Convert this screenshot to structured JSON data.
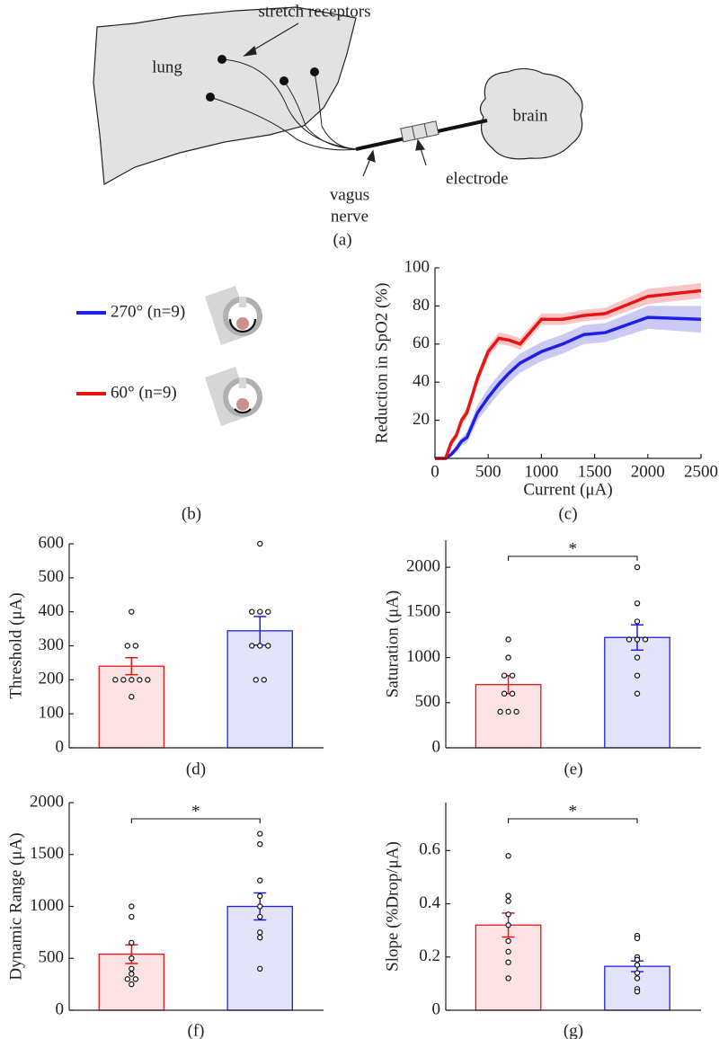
{
  "figure": {
    "panel_a": {
      "lung": "lung",
      "brain": "brain",
      "stretch_receptors": "stretch receptors",
      "vagus": "vagus",
      "nerve": "nerve",
      "electrode": "electrode",
      "panel_label": "(a)"
    },
    "panel_b": {
      "panel_label": "(b)"
    }
  },
  "chart_data": [
    {
      "type": "line",
      "panel_label": "(c)",
      "xlabel": "Current (μA)",
      "ylabel": "Reduction in SpO2 (%)",
      "x": [
        0,
        100,
        150,
        200,
        250,
        300,
        400,
        500,
        600,
        700,
        800,
        1000,
        1200,
        1400,
        1600,
        2000,
        2500
      ],
      "xlim": [
        0,
        2500
      ],
      "xticks": [
        0,
        500,
        1000,
        1500,
        2000,
        2500
      ],
      "ylim": [
        0,
        100
      ],
      "yticks": [
        20,
        40,
        60,
        80,
        100
      ],
      "series": [
        {
          "name": "270° (n=9)",
          "color": "#1f1fe6",
          "band_color": "#b8b8f2",
          "values": [
            0,
            0,
            2,
            5,
            9,
            11,
            24,
            32,
            39,
            45,
            50,
            56,
            60,
            65,
            66,
            74,
            73
          ],
          "errors": [
            0,
            0,
            1,
            2,
            2,
            3,
            4,
            5,
            5,
            5,
            5,
            5,
            5,
            5,
            5,
            6,
            7
          ]
        },
        {
          "name": "60°   (n=9)",
          "color": "#e81414",
          "band_color": "#f5b3b3",
          "values": [
            0,
            0,
            8,
            12,
            20,
            24,
            42,
            56,
            63,
            62,
            60,
            73,
            73,
            75,
            76,
            85,
            88
          ],
          "errors": [
            0,
            0,
            2,
            2,
            2,
            3,
            3,
            3,
            3,
            3,
            3,
            3,
            3,
            3,
            3,
            4,
            4
          ]
        }
      ]
    },
    {
      "type": "bar",
      "panel_label": "(d)",
      "ylabel": "Threshold (μA)",
      "categories": [
        null,
        null
      ],
      "values": [
        240,
        344
      ],
      "errors": [
        25,
        42
      ],
      "points": [
        [
          400,
          300,
          300,
          200,
          200,
          200,
          200,
          200,
          150
        ],
        [
          600,
          400,
          400,
          400,
          300,
          300,
          300,
          200,
          200
        ]
      ],
      "colors": [
        "#e81414",
        "#1f1fe6"
      ],
      "fill_colors": [
        "#fde3e3",
        "#e3e3fa"
      ],
      "ylim": [
        0,
        600
      ],
      "yticks": [
        0,
        100,
        200,
        300,
        400,
        500,
        600
      ]
    },
    {
      "type": "bar",
      "panel_label": "(e)",
      "ylabel": "Saturation (μA)",
      "categories": [
        null,
        null
      ],
      "values": [
        700,
        1222
      ],
      "errors": [
        100,
        140
      ],
      "points": [
        [
          1200,
          1000,
          800,
          800,
          600,
          600,
          400,
          400,
          400
        ],
        [
          2000,
          1600,
          1400,
          1200,
          1200,
          1200,
          1000,
          800,
          600
        ]
      ],
      "colors": [
        "#e81414",
        "#1f1fe6"
      ],
      "fill_colors": [
        "#fde3e3",
        "#e3e3fa"
      ],
      "ylim": [
        0,
        2300
      ],
      "yticks": [
        0,
        500,
        1000,
        1500,
        2000
      ],
      "significance": "*"
    },
    {
      "type": "bar",
      "panel_label": "(f)",
      "ylabel": "Dynamic Range (μA)",
      "categories": [
        null,
        null
      ],
      "values": [
        540,
        1000
      ],
      "errors": [
        90,
        130
      ],
      "points": [
        [
          1000,
          900,
          650,
          500,
          400,
          350,
          300,
          300,
          250
        ],
        [
          1700,
          1600,
          1250,
          1100,
          1000,
          900,
          750,
          700,
          400
        ]
      ],
      "colors": [
        "#e81414",
        "#1f1fe6"
      ],
      "fill_colors": [
        "#fde3e3",
        "#e3e3fa"
      ],
      "ylim": [
        0,
        2000
      ],
      "yticks": [
        0,
        500,
        1000,
        1500,
        2000
      ],
      "significance": "*"
    },
    {
      "type": "bar",
      "panel_label": "(g)",
      "ylabel": "Slope (%Drop/μA)",
      "categories": [
        null,
        null
      ],
      "values": [
        0.32,
        0.165
      ],
      "errors": [
        0.045,
        0.02
      ],
      "points": [
        [
          0.58,
          0.43,
          0.41,
          0.36,
          0.32,
          0.26,
          0.22,
          0.18,
          0.12
        ],
        [
          0.28,
          0.27,
          0.2,
          0.19,
          0.17,
          0.14,
          0.12,
          0.08,
          0.07
        ]
      ],
      "colors": [
        "#e81414",
        "#1f1fe6"
      ],
      "fill_colors": [
        "#fde3e3",
        "#e3e3fa"
      ],
      "ylim": [
        0,
        0.78
      ],
      "yticks": [
        0,
        0.2,
        0.4,
        0.6
      ],
      "significance": "*"
    }
  ]
}
